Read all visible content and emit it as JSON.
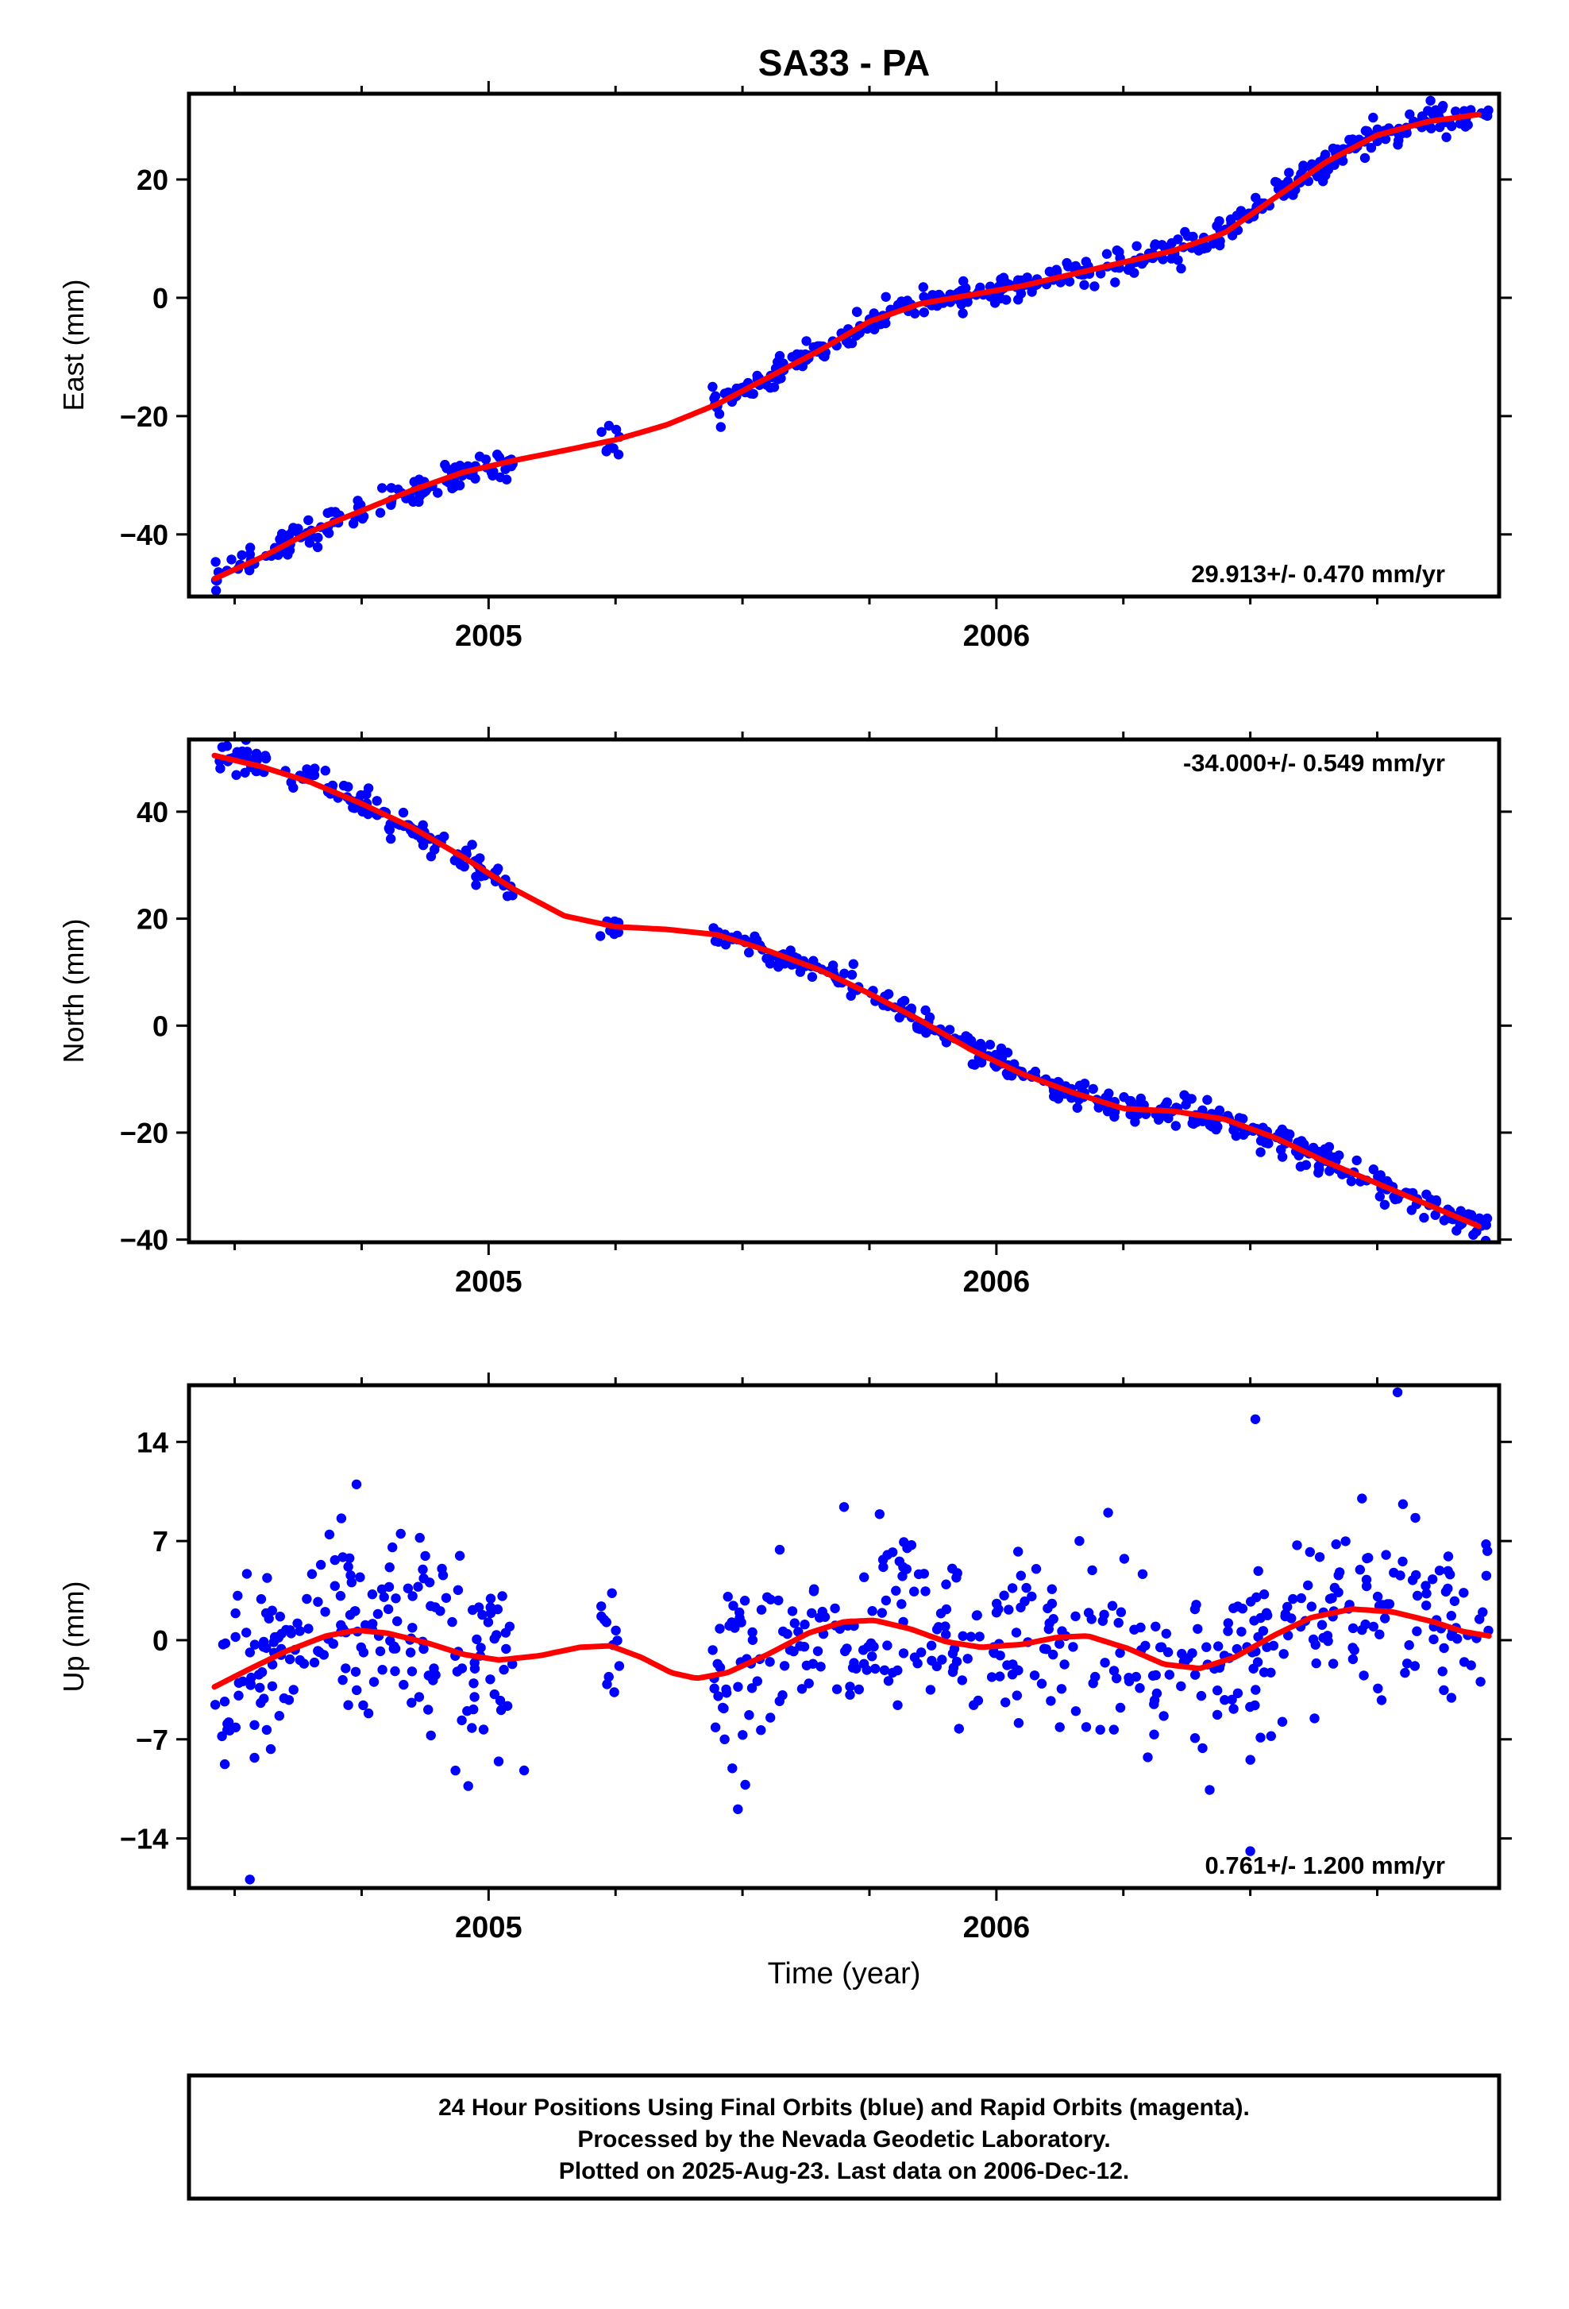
{
  "title": "SA33 - PA",
  "colors": {
    "final_orbits": "#0000ff",
    "fit": "#ff0000",
    "frame": "#000000"
  },
  "xlabel": "Time (year)",
  "footer": {
    "line1": "24 Hour Positions Using Final Orbits (blue) and Rapid Orbits (magenta).",
    "line2": "Processed by the Nevada Geodetic Laboratory.",
    "line3": "Plotted on 2025-Aug-23. Last data on 2006-Dec-12."
  },
  "chart_data": [
    {
      "type": "scatter",
      "component": "east",
      "ylabel": "East (mm)",
      "xlim": [
        2004.41,
        2006.99
      ],
      "ylim": [
        -50.5,
        34.5
      ],
      "xticks": [
        2005,
        2006
      ],
      "xtick_labels": [
        "2005",
        "2006"
      ],
      "yticks": [
        -40,
        -20,
        0,
        20
      ],
      "ytick_labels": [
        "−40",
        "−20",
        "0",
        "20"
      ],
      "rate": "29.913+/- 0.470 mm/yr",
      "rate_position": "bottom-right",
      "fit_curve": [
        [
          2004.46,
          -47.5
        ],
        [
          2004.55,
          -44
        ],
        [
          2004.65,
          -39.5
        ],
        [
          2004.75,
          -36
        ],
        [
          2004.85,
          -32.5
        ],
        [
          2004.95,
          -29.5
        ],
        [
          2005.05,
          -27.5
        ],
        [
          2005.15,
          -25.8
        ],
        [
          2005.25,
          -24
        ],
        [
          2005.35,
          -21.5
        ],
        [
          2005.45,
          -18
        ],
        [
          2005.55,
          -13.5
        ],
        [
          2005.65,
          -9
        ],
        [
          2005.75,
          -4
        ],
        [
          2005.85,
          -1
        ],
        [
          2005.95,
          0.5
        ],
        [
          2006.05,
          2
        ],
        [
          2006.15,
          4
        ],
        [
          2006.25,
          6
        ],
        [
          2006.35,
          8
        ],
        [
          2006.45,
          11
        ],
        [
          2006.55,
          17
        ],
        [
          2006.65,
          23
        ],
        [
          2006.75,
          27.5
        ],
        [
          2006.85,
          29.8
        ],
        [
          2006.95,
          31
        ]
      ],
      "series": [
        {
          "name": "Final Orbits",
          "segments": [
            {
              "x0": 2004.46,
              "x1": 2005.05,
              "n": 130,
              "scatter": 1.3
            },
            {
              "x0": 2005.22,
              "x1": 2005.26,
              "n": 9,
              "scatter": 1.2
            },
            {
              "x0": 2005.44,
              "x1": 2006.97,
              "n": 380,
              "scatter": 1.2
            }
          ]
        }
      ]
    },
    {
      "type": "scatter",
      "component": "north",
      "ylabel": "North (mm)",
      "xlim": [
        2004.41,
        2006.99
      ],
      "ylim": [
        -40.5,
        53.5
      ],
      "xticks": [
        2005,
        2006
      ],
      "xtick_labels": [
        "2005",
        "2006"
      ],
      "yticks": [
        -40,
        -20,
        0,
        20,
        40
      ],
      "ytick_labels": [
        "−40",
        "−20",
        "0",
        "20",
        "40"
      ],
      "rate": "-34.000+/- 0.549 mm/yr",
      "rate_position": "top-right",
      "fit_curve": [
        [
          2004.46,
          50.5
        ],
        [
          2004.55,
          48.5
        ],
        [
          2004.65,
          45.5
        ],
        [
          2004.75,
          41.5
        ],
        [
          2004.85,
          37
        ],
        [
          2004.95,
          31.5
        ],
        [
          2005.05,
          25.5
        ],
        [
          2005.15,
          20.5
        ],
        [
          2005.25,
          18.5
        ],
        [
          2005.35,
          18
        ],
        [
          2005.45,
          17
        ],
        [
          2005.55,
          14
        ],
        [
          2005.65,
          10.5
        ],
        [
          2005.75,
          6
        ],
        [
          2005.85,
          1
        ],
        [
          2005.95,
          -4.5
        ],
        [
          2006.05,
          -9
        ],
        [
          2006.15,
          -12.5
        ],
        [
          2006.25,
          -15.5
        ],
        [
          2006.35,
          -16
        ],
        [
          2006.45,
          -17.5
        ],
        [
          2006.55,
          -21
        ],
        [
          2006.65,
          -25.5
        ],
        [
          2006.75,
          -29.5
        ],
        [
          2006.85,
          -33.5
        ],
        [
          2006.95,
          -37.5
        ]
      ],
      "series": [
        {
          "name": "Final Orbits",
          "segments": [
            {
              "x0": 2004.46,
              "x1": 2005.05,
              "n": 130,
              "scatter": 1.4
            },
            {
              "x0": 2005.22,
              "x1": 2005.26,
              "n": 9,
              "scatter": 1.3
            },
            {
              "x0": 2005.44,
              "x1": 2006.97,
              "n": 380,
              "scatter": 1.3
            }
          ]
        }
      ]
    },
    {
      "type": "scatter",
      "component": "up",
      "ylabel": "Up (mm)",
      "xlim": [
        2004.41,
        2006.99
      ],
      "ylim": [
        -17.5,
        18
      ],
      "xticks": [
        2005,
        2006
      ],
      "xtick_labels": [
        "2005",
        "2006"
      ],
      "yticks": [
        -14,
        -7,
        0,
        7,
        14
      ],
      "ytick_labels": [
        "−14",
        "−7",
        "0",
        "7",
        "14"
      ],
      "rate": "0.761+/- 1.200 mm/yr",
      "rate_position": "bottom-right",
      "fit_curve": [
        [
          2004.46,
          -3.3
        ],
        [
          2004.52,
          -2.2
        ],
        [
          2004.6,
          -0.8
        ],
        [
          2004.68,
          0.3
        ],
        [
          2004.74,
          0.7
        ],
        [
          2004.8,
          0.5
        ],
        [
          2004.88,
          -0.2
        ],
        [
          2004.95,
          -1.0
        ],
        [
          2005.02,
          -1.4
        ],
        [
          2005.1,
          -1.1
        ],
        [
          2005.18,
          -0.5
        ],
        [
          2005.24,
          -0.4
        ],
        [
          2005.3,
          -1.2
        ],
        [
          2005.36,
          -2.3
        ],
        [
          2005.41,
          -2.7
        ],
        [
          2005.47,
          -2.3
        ],
        [
          2005.55,
          -1.0
        ],
        [
          2005.63,
          0.5
        ],
        [
          2005.7,
          1.3
        ],
        [
          2005.76,
          1.4
        ],
        [
          2005.83,
          0.8
        ],
        [
          2005.9,
          -0.1
        ],
        [
          2005.97,
          -0.5
        ],
        [
          2006.05,
          -0.3
        ],
        [
          2006.12,
          0.2
        ],
        [
          2006.18,
          0.3
        ],
        [
          2006.26,
          -0.6
        ],
        [
          2006.33,
          -1.7
        ],
        [
          2006.4,
          -2.0
        ],
        [
          2006.47,
          -1.2
        ],
        [
          2006.55,
          0.4
        ],
        [
          2006.62,
          1.6
        ],
        [
          2006.7,
          2.2
        ],
        [
          2006.78,
          2.0
        ],
        [
          2006.86,
          1.3
        ],
        [
          2006.92,
          0.6
        ],
        [
          2006.97,
          0.3
        ]
      ],
      "outliers": [
        [
          2004.53,
          -16.9
        ],
        [
          2004.74,
          11.0
        ],
        [
          2004.71,
          8.6
        ],
        [
          2004.96,
          -10.3
        ],
        [
          2005.07,
          -9.2
        ],
        [
          2006.22,
          9.0
        ],
        [
          2006.5,
          -14.9
        ],
        [
          2006.51,
          15.6
        ],
        [
          2006.79,
          17.5
        ],
        [
          2006.72,
          10.0
        ],
        [
          2005.7,
          9.4
        ],
        [
          2005.77,
          8.9
        ]
      ],
      "series": [
        {
          "name": "Final Orbits",
          "segments": [
            {
              "x0": 2004.46,
              "x1": 2005.05,
              "n": 200,
              "scatter": 3.2
            },
            {
              "x0": 2005.22,
              "x1": 2005.26,
              "n": 12,
              "scatter": 2.0
            },
            {
              "x0": 2005.44,
              "x1": 2006.97,
              "n": 420,
              "scatter": 3.0
            }
          ]
        }
      ]
    }
  ]
}
